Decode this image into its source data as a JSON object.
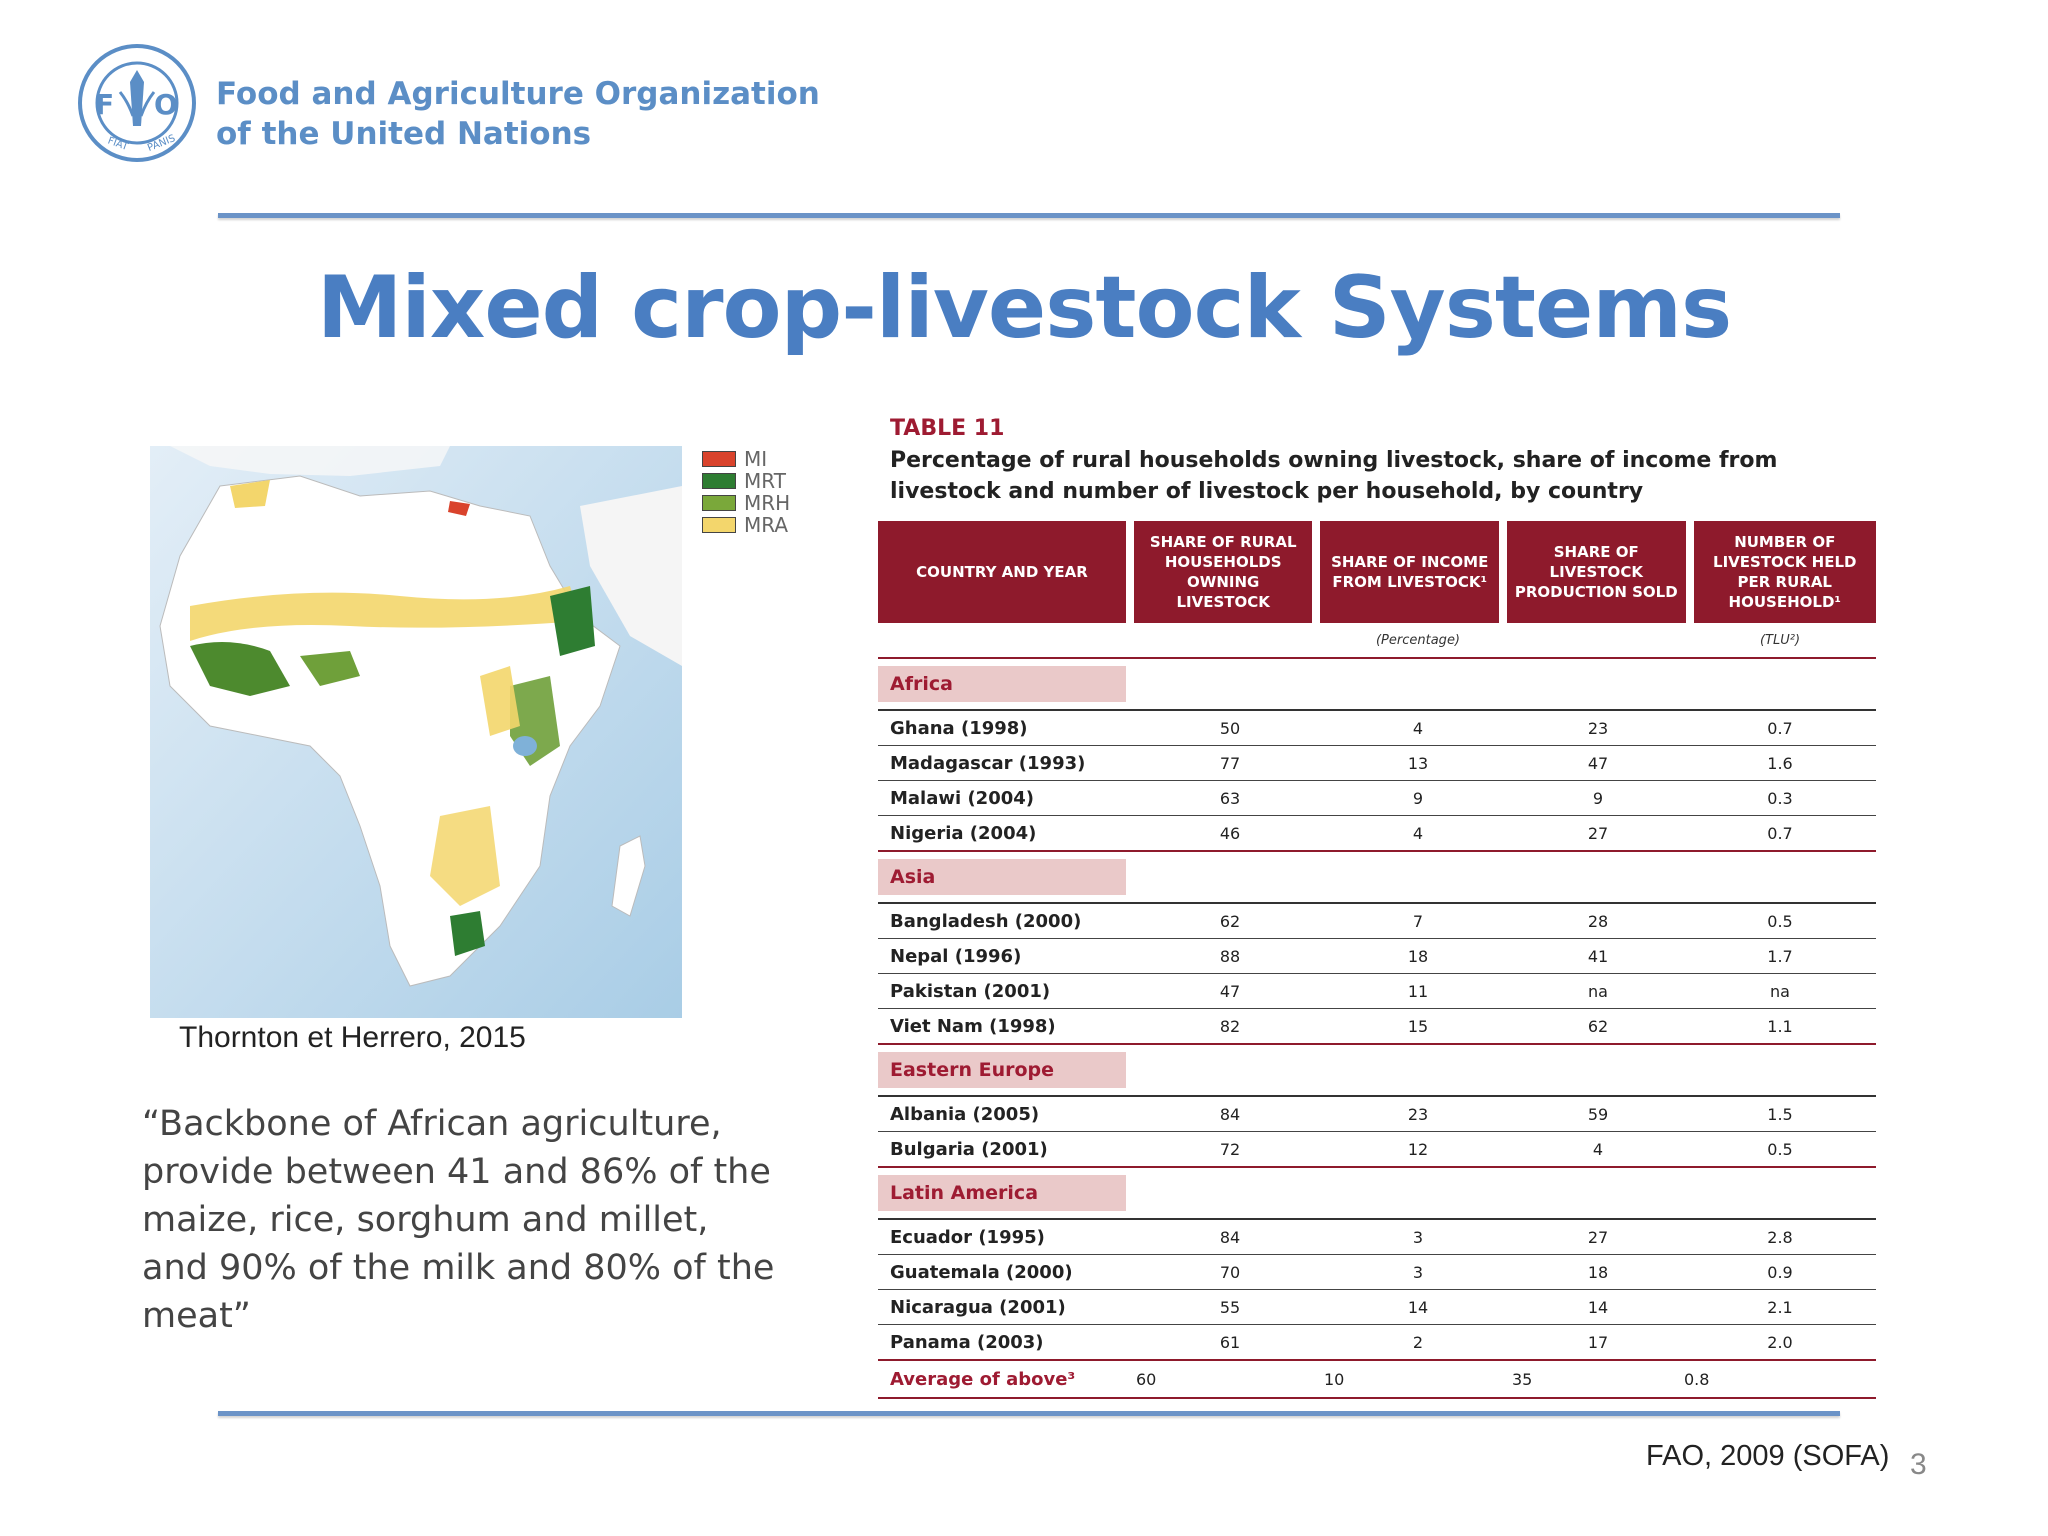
{
  "header": {
    "org_line1": "Food and Agriculture Organization",
    "org_line2": "of the United Nations",
    "logo_letters": "FAO",
    "logo_motto": "FIAT PANIS"
  },
  "title": "Mixed crop-livestock Systems",
  "map": {
    "legend": [
      {
        "label": "MI",
        "color": "#d9432c"
      },
      {
        "label": "MRT",
        "color": "#2e7d32"
      },
      {
        "label": "MRH",
        "color": "#7aa83a"
      },
      {
        "label": "MRA",
        "color": "#f3d66c"
      }
    ],
    "caption": "Thornton et Herrero, 2015"
  },
  "quote": "“Backbone of African agriculture, provide between 41 and 86% of the maize, rice, sorghum and millet, and 90% of the milk and 80% of the meat”",
  "table": {
    "label": "TABLE 11",
    "caption": "Percentage of rural households owning livestock, share of income from livestock and number of livestock per household, by country",
    "headers": [
      "COUNTRY AND YEAR",
      "SHARE OF RURAL HOUSEHOLDS OWNING LIVESTOCK",
      "SHARE OF INCOME FROM LIVESTOCK¹",
      "SHARE OF LIVESTOCK PRODUCTION SOLD",
      "NUMBER OF LIVESTOCK HELD PER RURAL HOUSEHOLD¹"
    ],
    "unit_percentage": "(Percentage)",
    "unit_tlu": "(TLU²)",
    "regions": [
      {
        "name": "Africa",
        "rows": [
          {
            "country": "Ghana (1998)",
            "values": [
              "50",
              "4",
              "23",
              "0.7"
            ]
          },
          {
            "country": "Madagascar (1993)",
            "values": [
              "77",
              "13",
              "47",
              "1.6"
            ]
          },
          {
            "country": "Malawi (2004)",
            "values": [
              "63",
              "9",
              "9",
              "0.3"
            ]
          },
          {
            "country": "Nigeria (2004)",
            "values": [
              "46",
              "4",
              "27",
              "0.7"
            ]
          }
        ]
      },
      {
        "name": "Asia",
        "rows": [
          {
            "country": "Bangladesh (2000)",
            "values": [
              "62",
              "7",
              "28",
              "0.5"
            ]
          },
          {
            "country": "Nepal (1996)",
            "values": [
              "88",
              "18",
              "41",
              "1.7"
            ]
          },
          {
            "country": "Pakistan (2001)",
            "values": [
              "47",
              "11",
              "na",
              "na"
            ]
          },
          {
            "country": "Viet Nam (1998)",
            "values": [
              "82",
              "15",
              "62",
              "1.1"
            ]
          }
        ]
      },
      {
        "name": "Eastern Europe",
        "rows": [
          {
            "country": "Albania (2005)",
            "values": [
              "84",
              "23",
              "59",
              "1.5"
            ]
          },
          {
            "country": "Bulgaria (2001)",
            "values": [
              "72",
              "12",
              "4",
              "0.5"
            ]
          }
        ]
      },
      {
        "name": "Latin America",
        "rows": [
          {
            "country": "Ecuador (1995)",
            "values": [
              "84",
              "3",
              "27",
              "2.8"
            ]
          },
          {
            "country": "Guatemala (2000)",
            "values": [
              "70",
              "3",
              "18",
              "0.9"
            ]
          },
          {
            "country": "Nicaragua (2001)",
            "values": [
              "55",
              "14",
              "14",
              "2.1"
            ]
          },
          {
            "country": "Panama (2003)",
            "values": [
              "61",
              "2",
              "17",
              "2.0"
            ]
          }
        ]
      }
    ],
    "average": {
      "country": "Average of above³",
      "values": [
        "60",
        "10",
        "35",
        "0.8"
      ]
    }
  },
  "source": "FAO, 2009 (SOFA)",
  "page_number": "3"
}
